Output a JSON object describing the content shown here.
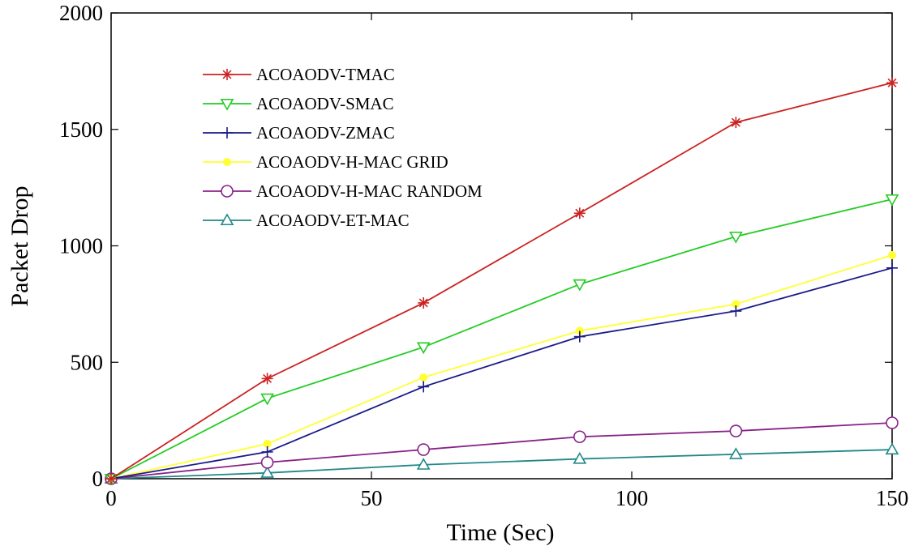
{
  "chart_data": {
    "type": "line",
    "title": "",
    "xlabel": "Time (Sec)",
    "ylabel": "Packet Drop",
    "xlim": [
      0,
      150
    ],
    "ylim": [
      0,
      2000
    ],
    "xticks": [
      "0",
      "50",
      "100",
      "150"
    ],
    "yticks": [
      "0",
      "500",
      "1000",
      "1500",
      "2000"
    ],
    "grid": false,
    "legend_position": "top-left",
    "x": [
      0,
      30,
      60,
      90,
      120,
      150
    ],
    "series": [
      {
        "name": "ACOAODV-TMAC",
        "color": "#cc2222",
        "marker": "star",
        "values": [
          0,
          430,
          755,
          1140,
          1530,
          1700
        ]
      },
      {
        "name": "ACOAODV-SMAC",
        "color": "#22cc22",
        "marker": "triangle-down",
        "values": [
          0,
          345,
          565,
          835,
          1040,
          1200
        ]
      },
      {
        "name": "ACOAODV-ZMAC",
        "color": "#1a1a88",
        "marker": "plus",
        "values": [
          0,
          115,
          395,
          610,
          720,
          905
        ]
      },
      {
        "name": "ACOAODV-H-MAC GRID",
        "color": "#ffff33",
        "marker": "dot",
        "values": [
          0,
          150,
          435,
          635,
          750,
          960
        ]
      },
      {
        "name": "ACOAODV-H-MAC RANDOM",
        "color": "#882288",
        "marker": "circle",
        "values": [
          0,
          70,
          125,
          180,
          205,
          240
        ]
      },
      {
        "name": "ACOAODV-ET-MAC",
        "color": "#228888",
        "marker": "triangle-up",
        "values": [
          0,
          25,
          60,
          85,
          105,
          125
        ]
      }
    ]
  }
}
